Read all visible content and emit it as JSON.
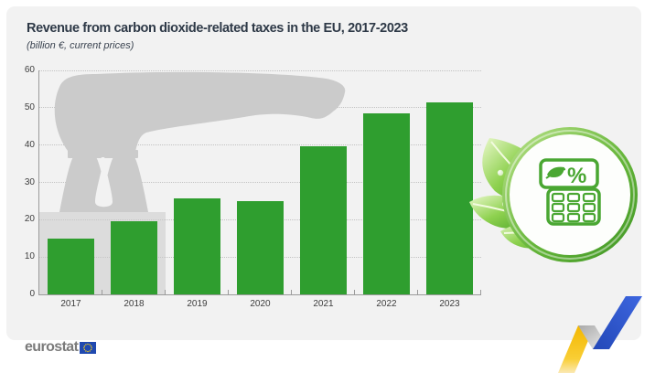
{
  "chart_data": {
    "type": "bar",
    "title": "Revenue from carbon dioxide-related taxes in the EU, 2017-2023",
    "subtitle": "(billion €, current prices)",
    "categories": [
      "2017",
      "2018",
      "2019",
      "2020",
      "2021",
      "2022",
      "2023"
    ],
    "values": [
      15.0,
      19.7,
      25.6,
      24.9,
      39.6,
      48.4,
      51.5
    ],
    "xlabel": "",
    "ylabel": "",
    "ylim": [
      0,
      60
    ],
    "ytick_interval": 10,
    "grid": "horizontal-dotted",
    "legend": "none",
    "bar_color": "#2f9e2f"
  },
  "icon": {
    "percent_symbol": "%",
    "description": "green-circle-calculator-with-leaves"
  },
  "footer": {
    "logo_text": "eurostat"
  },
  "colors": {
    "panel_bg": "#f2f2f2",
    "bar": "#2f9e2f",
    "silhouette": "#cbcbcb",
    "grid": "#c2c2c2",
    "axis": "#9b9b9b",
    "title_text": "#2e3947",
    "tick_text": "#3d3d3d",
    "accent_green": "#4aa733",
    "eu_blue": "#2049b0",
    "star_yellow": "#ffd617",
    "ribbon_yellow": "#f3b700",
    "ribbon_blue": "#2b52c9"
  }
}
